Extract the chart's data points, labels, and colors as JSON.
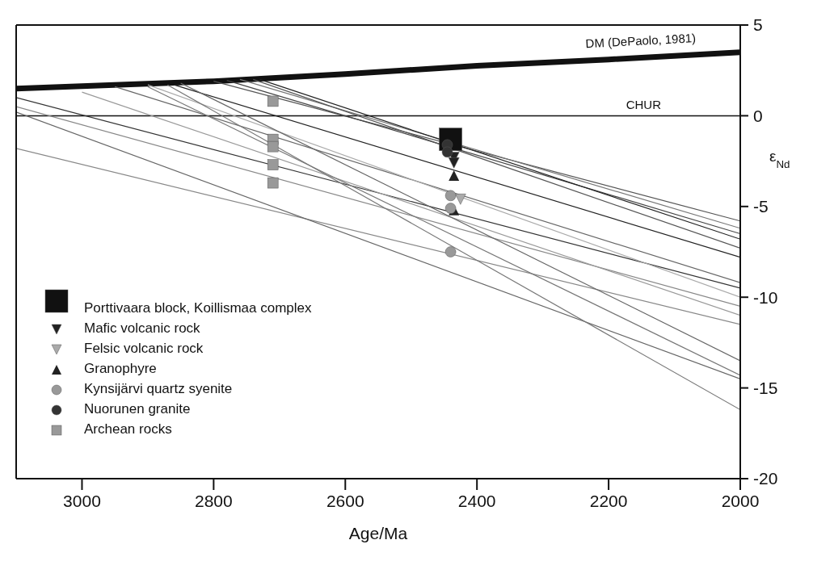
{
  "chart_data": {
    "type": "line",
    "xlabel": "Age/Ma",
    "ylabel": "ε$_{Nd}$",
    "xlim": [
      3100,
      2000
    ],
    "xticks": [
      3000,
      2800,
      2600,
      2400,
      2200,
      2000
    ],
    "ylim": [
      -20,
      5
    ],
    "yticks": [
      5,
      0,
      -5,
      -10,
      -15,
      -20
    ],
    "grid": false,
    "legend": "bottom left",
    "line_style": "solid",
    "ref_lines": [
      {
        "axis": "y",
        "value": 0,
        "label": "CHUR",
        "color": "#111111"
      }
    ],
    "series": [
      {
        "name": "DM (DePaolo, 1981)",
        "color": "#111111",
        "x": [
          3100,
          2800,
          2600,
          2400,
          2200,
          2000
        ],
        "values": [
          1.5,
          1.9,
          2.3,
          2.75,
          3.1,
          3.5
        ]
      },
      {
        "color": "#555555",
        "x": [
          2800,
          2000
        ],
        "values": [
          1.9,
          -5.8
        ]
      },
      {
        "color": "#777777",
        "x": [
          2760,
          2000
        ],
        "values": [
          2.0,
          -6.2
        ]
      },
      {
        "color": "#444444",
        "x": [
          2780,
          2000
        ],
        "values": [
          1.95,
          -6.5
        ]
      },
      {
        "color": "#222222",
        "x": [
          2730,
          2000
        ],
        "values": [
          2.0,
          -6.8
        ]
      },
      {
        "color": "#555555",
        "x": [
          2740,
          2000
        ],
        "values": [
          2.0,
          -7.3
        ]
      },
      {
        "color": "#222222",
        "x": [
          2860,
          2000
        ],
        "values": [
          1.7,
          -7.8
        ]
      },
      {
        "color": "#666666",
        "x": [
          2950,
          2000
        ],
        "values": [
          1.6,
          -9.2
        ]
      },
      {
        "color": "#333333",
        "x": [
          3100,
          2000
        ],
        "values": [
          1.0,
          -9.5
        ]
      },
      {
        "color": "#aaaaaa",
        "x": [
          2900,
          2000
        ],
        "values": [
          1.7,
          -10.0
        ]
      },
      {
        "color": "#888888",
        "x": [
          3100,
          2000
        ],
        "values": [
          0.5,
          -10.5
        ]
      },
      {
        "color": "#999999",
        "x": [
          3000,
          2000
        ],
        "values": [
          1.3,
          -11.0
        ]
      },
      {
        "color": "#888888",
        "x": [
          3100,
          2000
        ],
        "values": [
          -1.8,
          -11.5
        ]
      },
      {
        "color": "#666666",
        "x": [
          2850,
          2000
        ],
        "values": [
          1.8,
          -13.5
        ]
      },
      {
        "color": "#777777",
        "x": [
          2900,
          2000
        ],
        "values": [
          1.6,
          -14.3
        ]
      },
      {
        "color": "#666666",
        "x": [
          3100,
          2000
        ],
        "values": [
          0.2,
          -14.5
        ]
      },
      {
        "color": "#777777",
        "x": [
          2870,
          2000
        ],
        "values": [
          1.7,
          -16.2
        ]
      },
      {
        "type": "scatter",
        "name": "Porttivaara block, Koillismaa complex",
        "marker": "square",
        "color": "#111111",
        "x": [
          2440
        ],
        "values": [
          -1.3
        ]
      },
      {
        "type": "scatter",
        "name": "Mafic volcanic rock",
        "marker": "triangle-down",
        "color": "#222222",
        "x": [
          2435,
          2435
        ],
        "values": [
          -2.3,
          -2.6
        ]
      },
      {
        "type": "scatter",
        "name": "Felsic volcanic rock",
        "marker": "triangle-down",
        "color": "#aaaaaa",
        "x": [
          2425
        ],
        "values": [
          -4.6
        ]
      },
      {
        "type": "scatter",
        "name": "Granophyre",
        "marker": "triangle",
        "color": "#222222",
        "x": [
          2435,
          2435
        ],
        "values": [
          -3.3,
          -5.2
        ]
      },
      {
        "type": "scatter",
        "name": "Kynsijärvi quartz syenite",
        "marker": "circle",
        "color": "#999999",
        "x": [
          2440,
          2440,
          2440
        ],
        "values": [
          -4.4,
          -5.1,
          -7.5
        ]
      },
      {
        "type": "scatter",
        "name": "Nuorunen granite",
        "marker": "circle",
        "color": "#333333",
        "x": [
          2445,
          2445
        ],
        "values": [
          -1.6,
          -2.0
        ]
      },
      {
        "type": "scatter",
        "name": "Archean rocks",
        "marker": "square",
        "color": "#999999",
        "x": [
          2710,
          2710,
          2710,
          2710,
          2710
        ],
        "values": [
          0.8,
          -1.3,
          -1.7,
          -2.7,
          -3.7
        ]
      }
    ]
  }
}
